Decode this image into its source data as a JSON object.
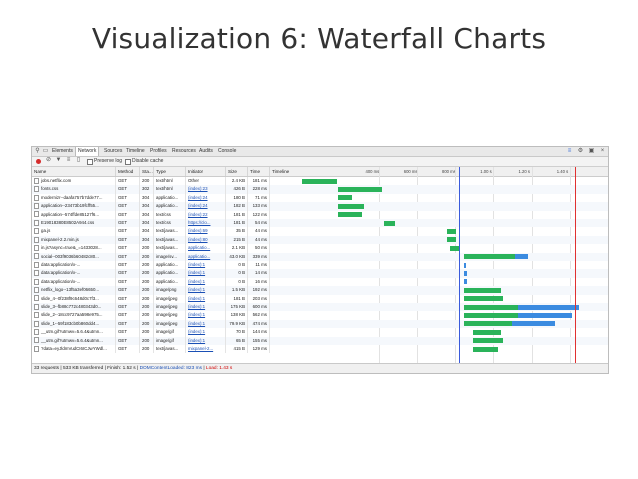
{
  "slide": {
    "title": "Visualization 6: Waterfall Charts"
  },
  "devtools": {
    "tabs": [
      "Elements",
      "Network",
      "Sources",
      "Timeline",
      "Profiles",
      "Resources",
      "Audits",
      "Console"
    ],
    "active_tab": "Network",
    "toolbar": {
      "preserve_log": "Preserve log",
      "disable_cache": "Disable cache"
    },
    "columns": [
      "Name",
      "Method",
      "Sta...",
      "Type",
      "Initiator",
      "Size",
      "Time",
      "Timeline"
    ],
    "ticks": [
      "400 ms",
      "600 ms",
      "800 ms",
      "1.00 s",
      "1.20 s",
      "1.40 s"
    ],
    "rows": [
      {
        "name": "jobs.netflix.com",
        "method": "GET",
        "status": "200",
        "type": "text/html",
        "initiator": "Other",
        "size": "2.4 KB",
        "time": "181 ms",
        "bars": [
          {
            "start": 0.0,
            "end": 0.181,
            "c": "g"
          }
        ]
      },
      {
        "name": "fonts.css",
        "method": "GET",
        "status": "302",
        "type": "text/html",
        "initiator": "(index):23",
        "size": "426 B",
        "time": "228 ms",
        "bars": [
          {
            "start": 0.19,
            "end": 0.418,
            "c": "g"
          }
        ]
      },
      {
        "name": "modernizr--daafa757b7dde77...",
        "method": "GET",
        "status": "304",
        "type": "applicatio...",
        "initiator": "(index):24",
        "size": "180 B",
        "time": "71 ms",
        "bars": [
          {
            "start": 0.19,
            "end": 0.261,
            "c": "g"
          }
        ]
      },
      {
        "name": "application--23473b19fcff55...",
        "method": "GET",
        "status": "304",
        "type": "applicatio...",
        "initiator": "(index):24",
        "size": "182 B",
        "time": "133 ms",
        "bars": [
          {
            "start": 0.19,
            "end": 0.323,
            "c": "g"
          }
        ]
      },
      {
        "name": "application--574ffde85127f6...",
        "method": "GET",
        "status": "304",
        "type": "text/css",
        "initiator": "(index):22",
        "size": "181 B",
        "time": "122 ms",
        "bars": [
          {
            "start": 0.19,
            "end": 0.312,
            "c": "g"
          }
        ]
      },
      {
        "name": "E19018380E8502A944.css",
        "method": "GET",
        "status": "304",
        "type": "text/css",
        "initiator": "https://clo...",
        "size": "181 B",
        "time": "54 ms",
        "bars": [
          {
            "start": 0.43,
            "end": 0.484,
            "c": "g"
          }
        ]
      },
      {
        "name": "ga.js",
        "method": "GET",
        "status": "304",
        "type": "text/javas...",
        "initiator": "(index):69",
        "size": "35 B",
        "time": "44 ms",
        "bars": [
          {
            "start": 0.76,
            "end": 0.804,
            "c": "g"
          }
        ]
      },
      {
        "name": "mixpanel-2.2.min.js",
        "method": "GET",
        "status": "304",
        "type": "text/javas...",
        "initiator": "(index):80",
        "size": "215 B",
        "time": "44 ms",
        "bars": [
          {
            "start": 0.76,
            "end": 0.804,
            "c": "g"
          }
        ]
      },
      {
        "name": "in.js?async=true&_=1433028...",
        "method": "GET",
        "status": "200",
        "type": "text/javas...",
        "initiator": "applicatio...",
        "size": "2.1 KB",
        "time": "50 ms",
        "bars": [
          {
            "start": 0.775,
            "end": 0.825,
            "c": "g"
          }
        ]
      },
      {
        "name": "social--003f9036b60482c80...",
        "method": "GET",
        "status": "200",
        "type": "image/sv...",
        "initiator": "applicatio...",
        "size": "43.0 KB",
        "time": "339 ms",
        "bars": [
          {
            "start": 0.845,
            "end": 1.115,
            "c": "g"
          },
          {
            "start": 1.115,
            "end": 1.184,
            "c": "b"
          }
        ]
      },
      {
        "name": "data:application/x-...",
        "method": "GET",
        "status": "200",
        "type": "applicatio...",
        "initiator": "(index):1",
        "size": "0 B",
        "time": "11 ms",
        "bars": [
          {
            "start": 0.848,
            "end": 0.859,
            "c": "b"
          }
        ]
      },
      {
        "name": "data:application/x-...",
        "method": "GET",
        "status": "200",
        "type": "applicatio...",
        "initiator": "(index):1",
        "size": "0 B",
        "time": "14 ms",
        "bars": [
          {
            "start": 0.848,
            "end": 0.862,
            "c": "b"
          }
        ]
      },
      {
        "name": "data:application/x-...",
        "method": "GET",
        "status": "200",
        "type": "applicatio...",
        "initiator": "(index):1",
        "size": "0 B",
        "time": "16 ms",
        "bars": [
          {
            "start": 0.848,
            "end": 0.864,
            "c": "b"
          }
        ]
      },
      {
        "name": "netflix_logo--13f5a3ef06650...",
        "method": "GET",
        "status": "200",
        "type": "image/png",
        "initiator": "(index):1",
        "size": "1.5 KB",
        "time": "192 ms",
        "bars": [
          {
            "start": 0.848,
            "end": 1.04,
            "c": "g"
          }
        ]
      },
      {
        "name": "slide_4--0f238f9c648d0c7f3...",
        "method": "GET",
        "status": "200",
        "type": "image/jpeg",
        "initiator": "(index):1",
        "size": "181 B",
        "time": "203 ms",
        "bars": [
          {
            "start": 0.848,
            "end": 1.051,
            "c": "g"
          }
        ]
      },
      {
        "name": "slide_3--fb88c772c480343d0...",
        "method": "GET",
        "status": "200",
        "type": "image/jpeg",
        "initiator": "(index):1",
        "size": "175 KB",
        "time": "600 ms",
        "bars": [
          {
            "start": 0.848,
            "end": 1.13,
            "c": "g"
          },
          {
            "start": 1.13,
            "end": 1.448,
            "c": "b"
          }
        ]
      },
      {
        "name": "slide_2--18cc9727aa598e975...",
        "method": "GET",
        "status": "200",
        "type": "image/jpeg",
        "initiator": "(index):1",
        "size": "138 KB",
        "time": "562 ms",
        "bars": [
          {
            "start": 0.848,
            "end": 1.13,
            "c": "g"
          },
          {
            "start": 1.13,
            "end": 1.41,
            "c": "b"
          }
        ]
      },
      {
        "name": "slide_1--59f183cb0b860dd4...",
        "method": "GET",
        "status": "200",
        "type": "image/jpeg",
        "initiator": "(index):1",
        "size": "79.9 KB",
        "time": "474 ms",
        "bars": [
          {
            "start": 0.848,
            "end": 1.1,
            "c": "g"
          },
          {
            "start": 1.1,
            "end": 1.322,
            "c": "b"
          }
        ]
      },
      {
        "name": "__utm.gif?utmwv=5.6.4&utmn...",
        "method": "GET",
        "status": "200",
        "type": "image/gif",
        "initiator": "(index):1",
        "size": "70 B",
        "time": "144 ms",
        "bars": [
          {
            "start": 0.894,
            "end": 1.038,
            "c": "g"
          }
        ]
      },
      {
        "name": "__utm.gif?utmwv=5.6.4&utmn...",
        "method": "GET",
        "status": "200",
        "type": "image/gif",
        "initiator": "(index):1",
        "size": "65 B",
        "time": "155 ms",
        "bars": [
          {
            "start": 0.894,
            "end": 1.049,
            "c": "g"
          }
        ]
      },
      {
        "name": "?data=eyJldmVudCI6ICJwYWdl...",
        "method": "GET",
        "status": "200",
        "type": "text/javas...",
        "initiator": "mixpanel-2...",
        "size": "415 B",
        "time": "129 ms",
        "bars": [
          {
            "start": 0.894,
            "end": 1.023,
            "c": "g"
          }
        ]
      }
    ],
    "status_bar": {
      "summary": "33 requests | 533 KB transferred | Finish: 1.52 s | ",
      "dom_loaded": "DOMContentLoaded: 823 ms",
      "sep": " | ",
      "load": "Load: 1.43 s"
    },
    "colors": {
      "waiting": "#2ab35a",
      "receiving": "#3b8be0",
      "domcontentloaded": "#3b5bdb",
      "load": "#e03131"
    }
  }
}
